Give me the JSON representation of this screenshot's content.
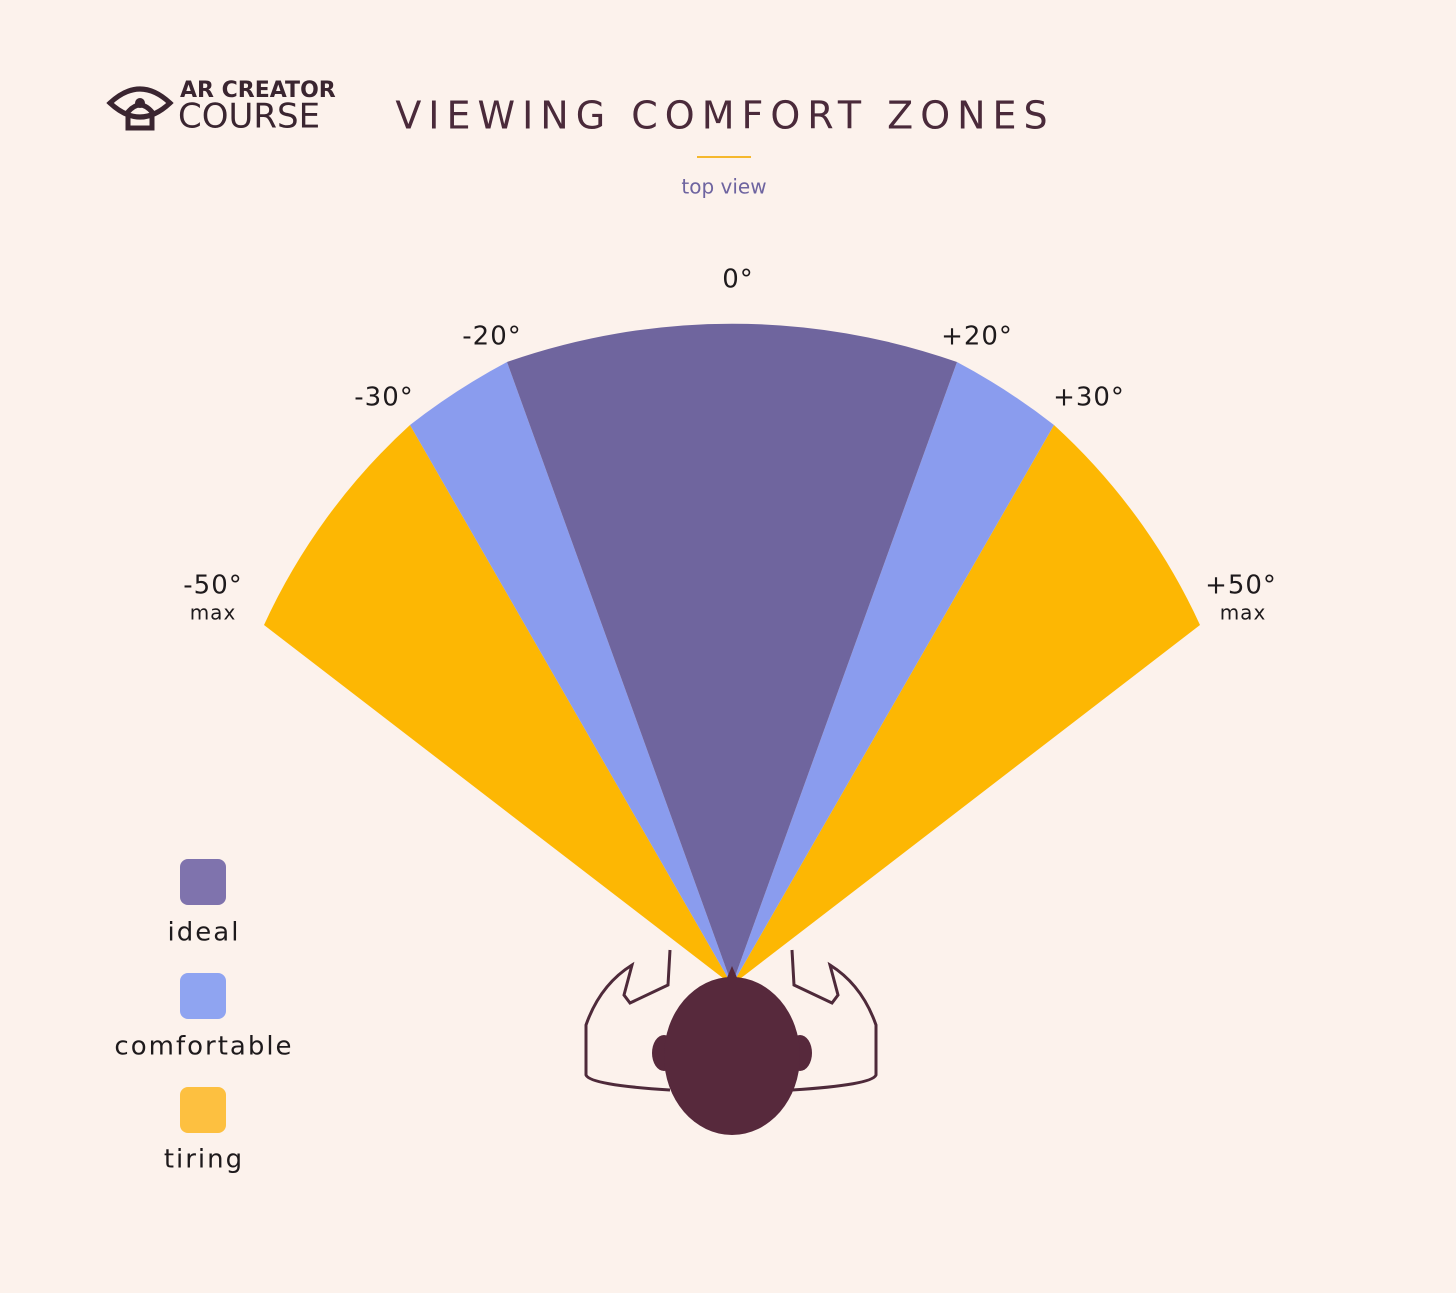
{
  "logo": {
    "line1": "AR CREATOR",
    "line2": "COURSE"
  },
  "header": {
    "title": "VIEWING COMFORT ZONES",
    "subtitle": "top view"
  },
  "angles": [
    {
      "label": "0°"
    },
    {
      "label": "-20°"
    },
    {
      "label": "+20°"
    },
    {
      "label": "-30°"
    },
    {
      "label": "+30°"
    },
    {
      "label": "-50°",
      "note": "max"
    },
    {
      "label": "+50°",
      "note": "max"
    }
  ],
  "legend": [
    {
      "label": "ideal"
    },
    {
      "label": "comfortable"
    },
    {
      "label": "tiring"
    }
  ]
}
